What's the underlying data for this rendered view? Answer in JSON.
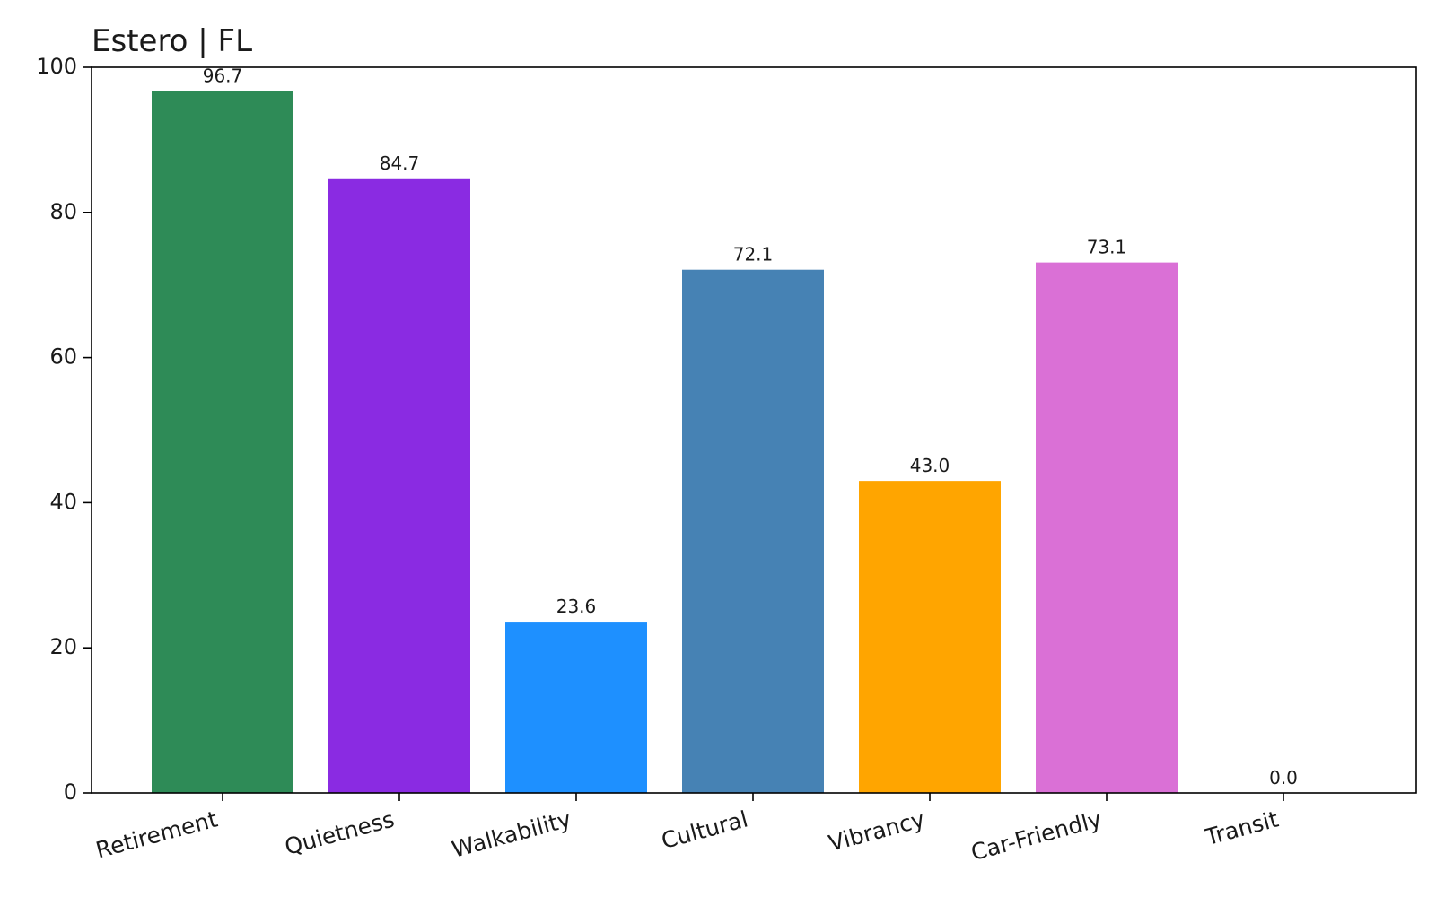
{
  "chart_data": {
    "type": "bar",
    "title": "Estero | FL",
    "xlabel": "",
    "ylabel": "",
    "ylim": [
      0,
      100
    ],
    "yticks": [
      0,
      20,
      40,
      60,
      80,
      100
    ],
    "grid": false,
    "categories": [
      "Retirement",
      "Quietness",
      "Walkability",
      "Cultural",
      "Vibrancy",
      "Car-Friendly",
      "Transit"
    ],
    "values": [
      96.7,
      84.7,
      23.6,
      72.1,
      43.0,
      73.1,
      0.0
    ],
    "value_labels": [
      "96.7",
      "84.7",
      "23.6",
      "72.1",
      "43.0",
      "73.1",
      "0.0"
    ],
    "colors": [
      "#2e8b57",
      "#8a2be2",
      "#1e90ff",
      "#4682b4",
      "#ffa500",
      "#da70d6",
      "#888888"
    ]
  }
}
